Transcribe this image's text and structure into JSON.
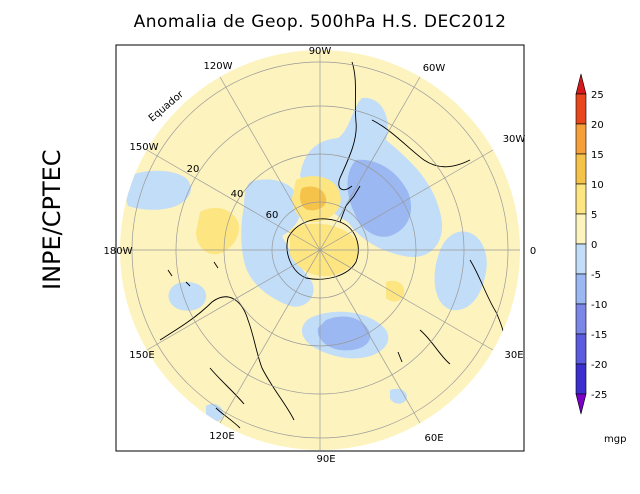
{
  "title": "Anomalia de Geop. 500hPa H.S. DEC2012",
  "watermark": "INPE/CPTEC",
  "map": {
    "projection": "polar-stereographic-south",
    "longitude_labels": {
      "90W": "90W",
      "60W": "60W",
      "30W": "30W",
      "0": "0",
      "30E": "30E",
      "60E": "60E",
      "90E": "90E",
      "120E": "120E",
      "150E": "150E",
      "180W": "180W",
      "150W": "150W",
      "120W": "120W"
    },
    "latitude_labels": [
      "20",
      "40",
      "60"
    ],
    "equator_label": "Equador"
  },
  "colorbar": {
    "unit": "mgp",
    "levels": [
      "25",
      "20",
      "15",
      "10",
      "5",
      "0",
      "-5",
      "-10",
      "-15",
      "-20",
      "-25"
    ],
    "colors": [
      "#e8461c",
      "#f5a03a",
      "#f6c34a",
      "#fde582",
      "#fdf3bf",
      "#c1ddf8",
      "#9bb8f3",
      "#7b87e6",
      "#5b5be0",
      "#3b2fd0"
    ],
    "top_arrow_color": "#d7191c",
    "bottom_arrow_color": "#7a00c8"
  }
}
